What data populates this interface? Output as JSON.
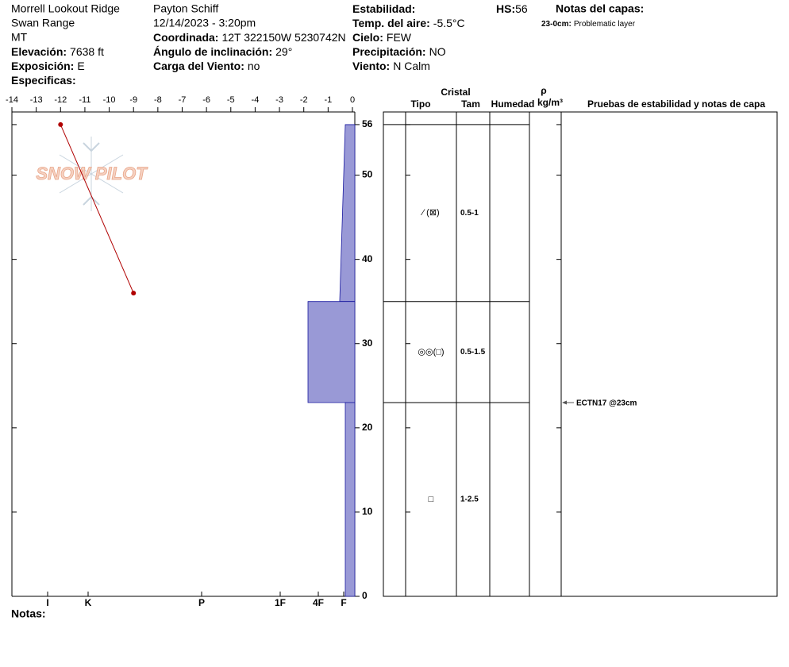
{
  "header": {
    "site": "Morrell Lookout Ridge",
    "range": "Swan Range",
    "state": "MT",
    "observer": "Payton Schiff",
    "datetime": "12/14/2023 - 3:20pm",
    "fields": [
      {
        "label": "Elevación:",
        "value": "7638 ft"
      },
      {
        "label": "Exposición:",
        "value": "E"
      },
      {
        "label": "Especificas:"
      },
      {
        "label": "Coordinada:",
        "value": "12T 322150W 5230742N"
      },
      {
        "label": "Ángulo de inclinación:",
        "value": "29°"
      },
      {
        "label": "Carga del Viento:",
        "value": "no"
      },
      {
        "label": "Estabilidad:"
      },
      {
        "label": "Temp. del aire:",
        "value": "-5.5°C"
      },
      {
        "label": "Cielo:",
        "value": "FEW"
      },
      {
        "label": "Precipitación:",
        "value": "NO"
      },
      {
        "label": "Viento:",
        "value": "N Calm"
      }
    ],
    "hs": {
      "label": "HS:",
      "value": 56
    },
    "layer_notes_title": "Notas del capas:",
    "layer_notes": [
      {
        "label": "23-0cm:",
        "text": "Problematic layer"
      }
    ]
  },
  "chart_data": {
    "type": "snow-profile",
    "logo": "SNOW PILOT",
    "temperature": {
      "heights": [
        56,
        36
      ],
      "values": [
        -12,
        -9
      ],
      "color": "#b00000"
    },
    "xlim": [
      -14,
      0
    ],
    "xticks": [
      -14,
      -13,
      -12,
      -11,
      -10,
      -9,
      -8,
      -7,
      -6,
      -5,
      -4,
      -3,
      -2,
      -1,
      0
    ],
    "ylim": [
      0,
      57.5
    ],
    "yticks": [
      0,
      10,
      20,
      30,
      40,
      50,
      56
    ],
    "hardness_ticks": [
      {
        "value": 6,
        "label": "I"
      },
      {
        "value": 5,
        "label": "K"
      },
      {
        "value": 4,
        "label": "P"
      },
      {
        "value": 3,
        "label": "1F"
      },
      {
        "value": 2,
        "label": "4F"
      },
      {
        "value": 1,
        "label": "F"
      }
    ],
    "hardness_color": "#9999d6",
    "layers": [
      {
        "top": 56,
        "bottom": 35,
        "hardness_top": 1,
        "hardness_bottom": 1.15,
        "grain": "⁄ (⊠)",
        "size": "0.5-1"
      },
      {
        "top": 35,
        "bottom": 23,
        "hardness_top": 2,
        "hardness_bottom": 2,
        "grain": "◎◎(□)",
        "size": "0.5-1.5"
      },
      {
        "top": 23,
        "bottom": 0,
        "hardness_top": 1,
        "hardness_bottom": 1,
        "grain": "□",
        "size": "1-2.5"
      }
    ],
    "columns": {
      "crystal": "Cristal",
      "type": "Tipo",
      "size": "Tam",
      "moisture": "Humedad",
      "density": "ρ",
      "density_unit": "kg/m³",
      "tests": "Pruebas de estabilidad y notas de capa"
    },
    "tests": [
      {
        "depth": 23,
        "label": "ECTN17 @23cm"
      }
    ],
    "notes_label": "Notas:"
  }
}
